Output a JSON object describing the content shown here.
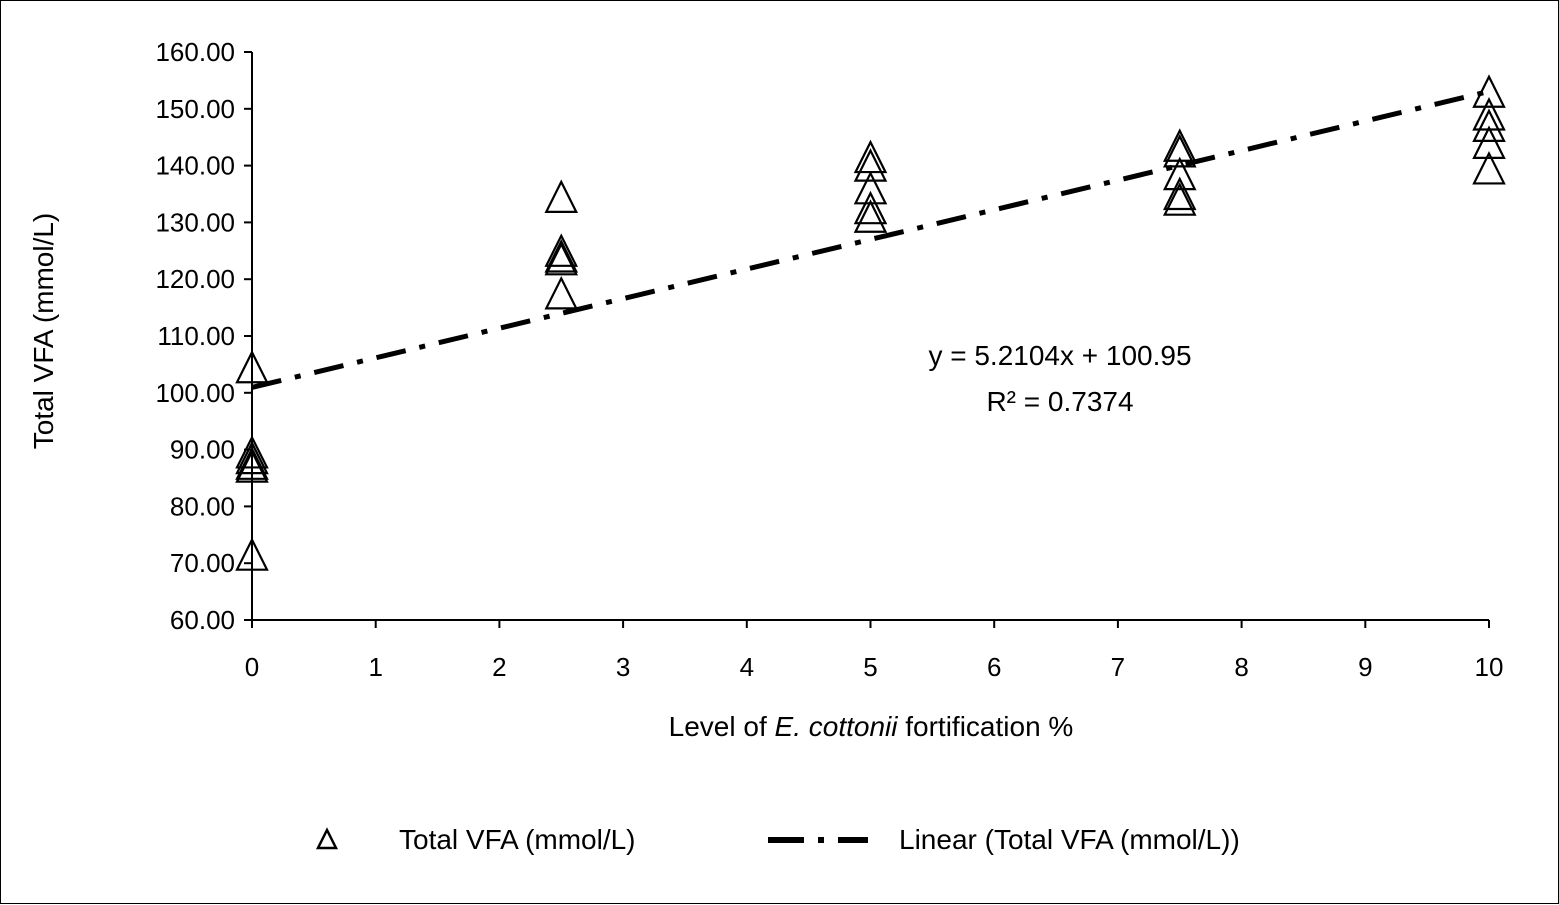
{
  "chart_data": {
    "type": "scatter",
    "x_axis": {
      "label_prefix": "Level of ",
      "label_italic": "E. cottonii",
      "label_suffix": " fortification %",
      "min": 0,
      "max": 10,
      "ticks": [
        0,
        1,
        2,
        3,
        4,
        5,
        6,
        7,
        8,
        9,
        10
      ],
      "tick_labels": [
        "0",
        "1",
        "2",
        "3",
        "4",
        "5",
        "6",
        "7",
        "8",
        "9",
        "10"
      ]
    },
    "y_axis": {
      "label": "Total VFA (mmol/L)",
      "min": 60,
      "max": 160,
      "ticks": [
        60,
        70,
        80,
        90,
        100,
        110,
        120,
        130,
        140,
        150,
        160
      ],
      "tick_labels": [
        "60.00",
        "70.00",
        "80.00",
        "90.00",
        "100.00",
        "110.00",
        "120.00",
        "130.00",
        "140.00",
        "150.00",
        "160.00"
      ]
    },
    "grid": false,
    "legend_position": "bottom",
    "series": [
      {
        "name": "Total VFA (mmol/L)",
        "marker": "open-triangle",
        "color": "#000000",
        "points": [
          {
            "x": 0,
            "y": 104.5
          },
          {
            "x": 0,
            "y": 89.5
          },
          {
            "x": 0,
            "y": 88.5
          },
          {
            "x": 0,
            "y": 87.5
          },
          {
            "x": 0,
            "y": 87
          },
          {
            "x": 0,
            "y": 71.5
          },
          {
            "x": 2.5,
            "y": 134.5
          },
          {
            "x": 2.5,
            "y": 125
          },
          {
            "x": 2.5,
            "y": 124
          },
          {
            "x": 2.5,
            "y": 123.5
          },
          {
            "x": 2.5,
            "y": 117.5
          },
          {
            "x": 5,
            "y": 141.5
          },
          {
            "x": 5,
            "y": 140
          },
          {
            "x": 5,
            "y": 136
          },
          {
            "x": 5,
            "y": 132.5
          },
          {
            "x": 5,
            "y": 131
          },
          {
            "x": 7.5,
            "y": 143.5
          },
          {
            "x": 7.5,
            "y": 142.5
          },
          {
            "x": 7.5,
            "y": 138.5
          },
          {
            "x": 7.5,
            "y": 135
          },
          {
            "x": 7.5,
            "y": 134
          },
          {
            "x": 10,
            "y": 153
          },
          {
            "x": 10,
            "y": 149
          },
          {
            "x": 10,
            "y": 147
          },
          {
            "x": 10,
            "y": 144
          },
          {
            "x": 10,
            "y": 139.5
          }
        ]
      },
      {
        "name": "Linear (Total VFA (mmol/L))",
        "type": "trendline",
        "style": "dash-dot",
        "color": "#000000",
        "slope": 5.2104,
        "intercept": 100.95,
        "x_range": [
          0,
          10
        ]
      }
    ],
    "annotations": {
      "equation": "y = 5.2104x + 100.95",
      "r_squared": "R² = 0.7374"
    }
  }
}
